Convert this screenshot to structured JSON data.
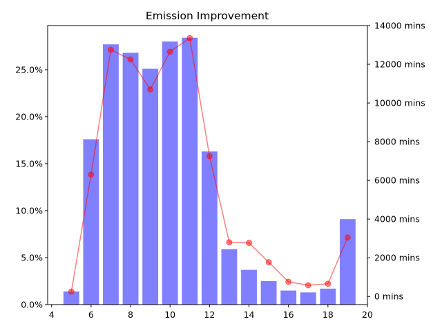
{
  "chart_data": {
    "type": "bar",
    "title": "Emission Improvement",
    "xlabel": "",
    "ylabel": "",
    "y2label": "",
    "x_ticks": [
      4,
      6,
      8,
      10,
      12,
      14,
      16,
      18,
      20
    ],
    "xlim": [
      3.8,
      20.0
    ],
    "y_ticks_left": [
      "0.0%",
      "5.0%",
      "10.0%",
      "15.0%",
      "20.0%",
      "25.0%"
    ],
    "y_ticks_left_values": [
      0,
      5,
      10,
      15,
      20,
      25
    ],
    "ylim_left": [
      0,
      29.7
    ],
    "y_ticks_right": [
      "0 mins",
      "2000 mins",
      "4000 mins",
      "6000 mins",
      "8000 mins",
      "10000 mins",
      "12000 mins",
      "14000 mins"
    ],
    "y_ticks_right_values": [
      0,
      2000,
      4000,
      6000,
      8000,
      10000,
      12000,
      14000
    ],
    "ylim_right": [
      -420,
      14000
    ],
    "grid": false,
    "legend": "none",
    "bar_series": {
      "axis": "left",
      "color": "#8080ff",
      "x": [
        5,
        6,
        7,
        8,
        9,
        10,
        11,
        12,
        13,
        14,
        15,
        16,
        17,
        18,
        19
      ],
      "values": [
        1.4,
        17.6,
        27.7,
        26.8,
        25.1,
        28.0,
        28.4,
        16.3,
        5.9,
        3.7,
        2.5,
        1.5,
        1.3,
        1.7,
        9.1
      ]
    },
    "line_series": {
      "axis": "right",
      "color": "#ff0000",
      "x": [
        5,
        6,
        7,
        8,
        9,
        10,
        11,
        12,
        13,
        14,
        15,
        16,
        17,
        18,
        19
      ],
      "values": [
        250,
        6300,
        12750,
        12250,
        10700,
        12650,
        13350,
        7250,
        2800,
        2770,
        1770,
        760,
        580,
        660,
        3050
      ]
    }
  }
}
